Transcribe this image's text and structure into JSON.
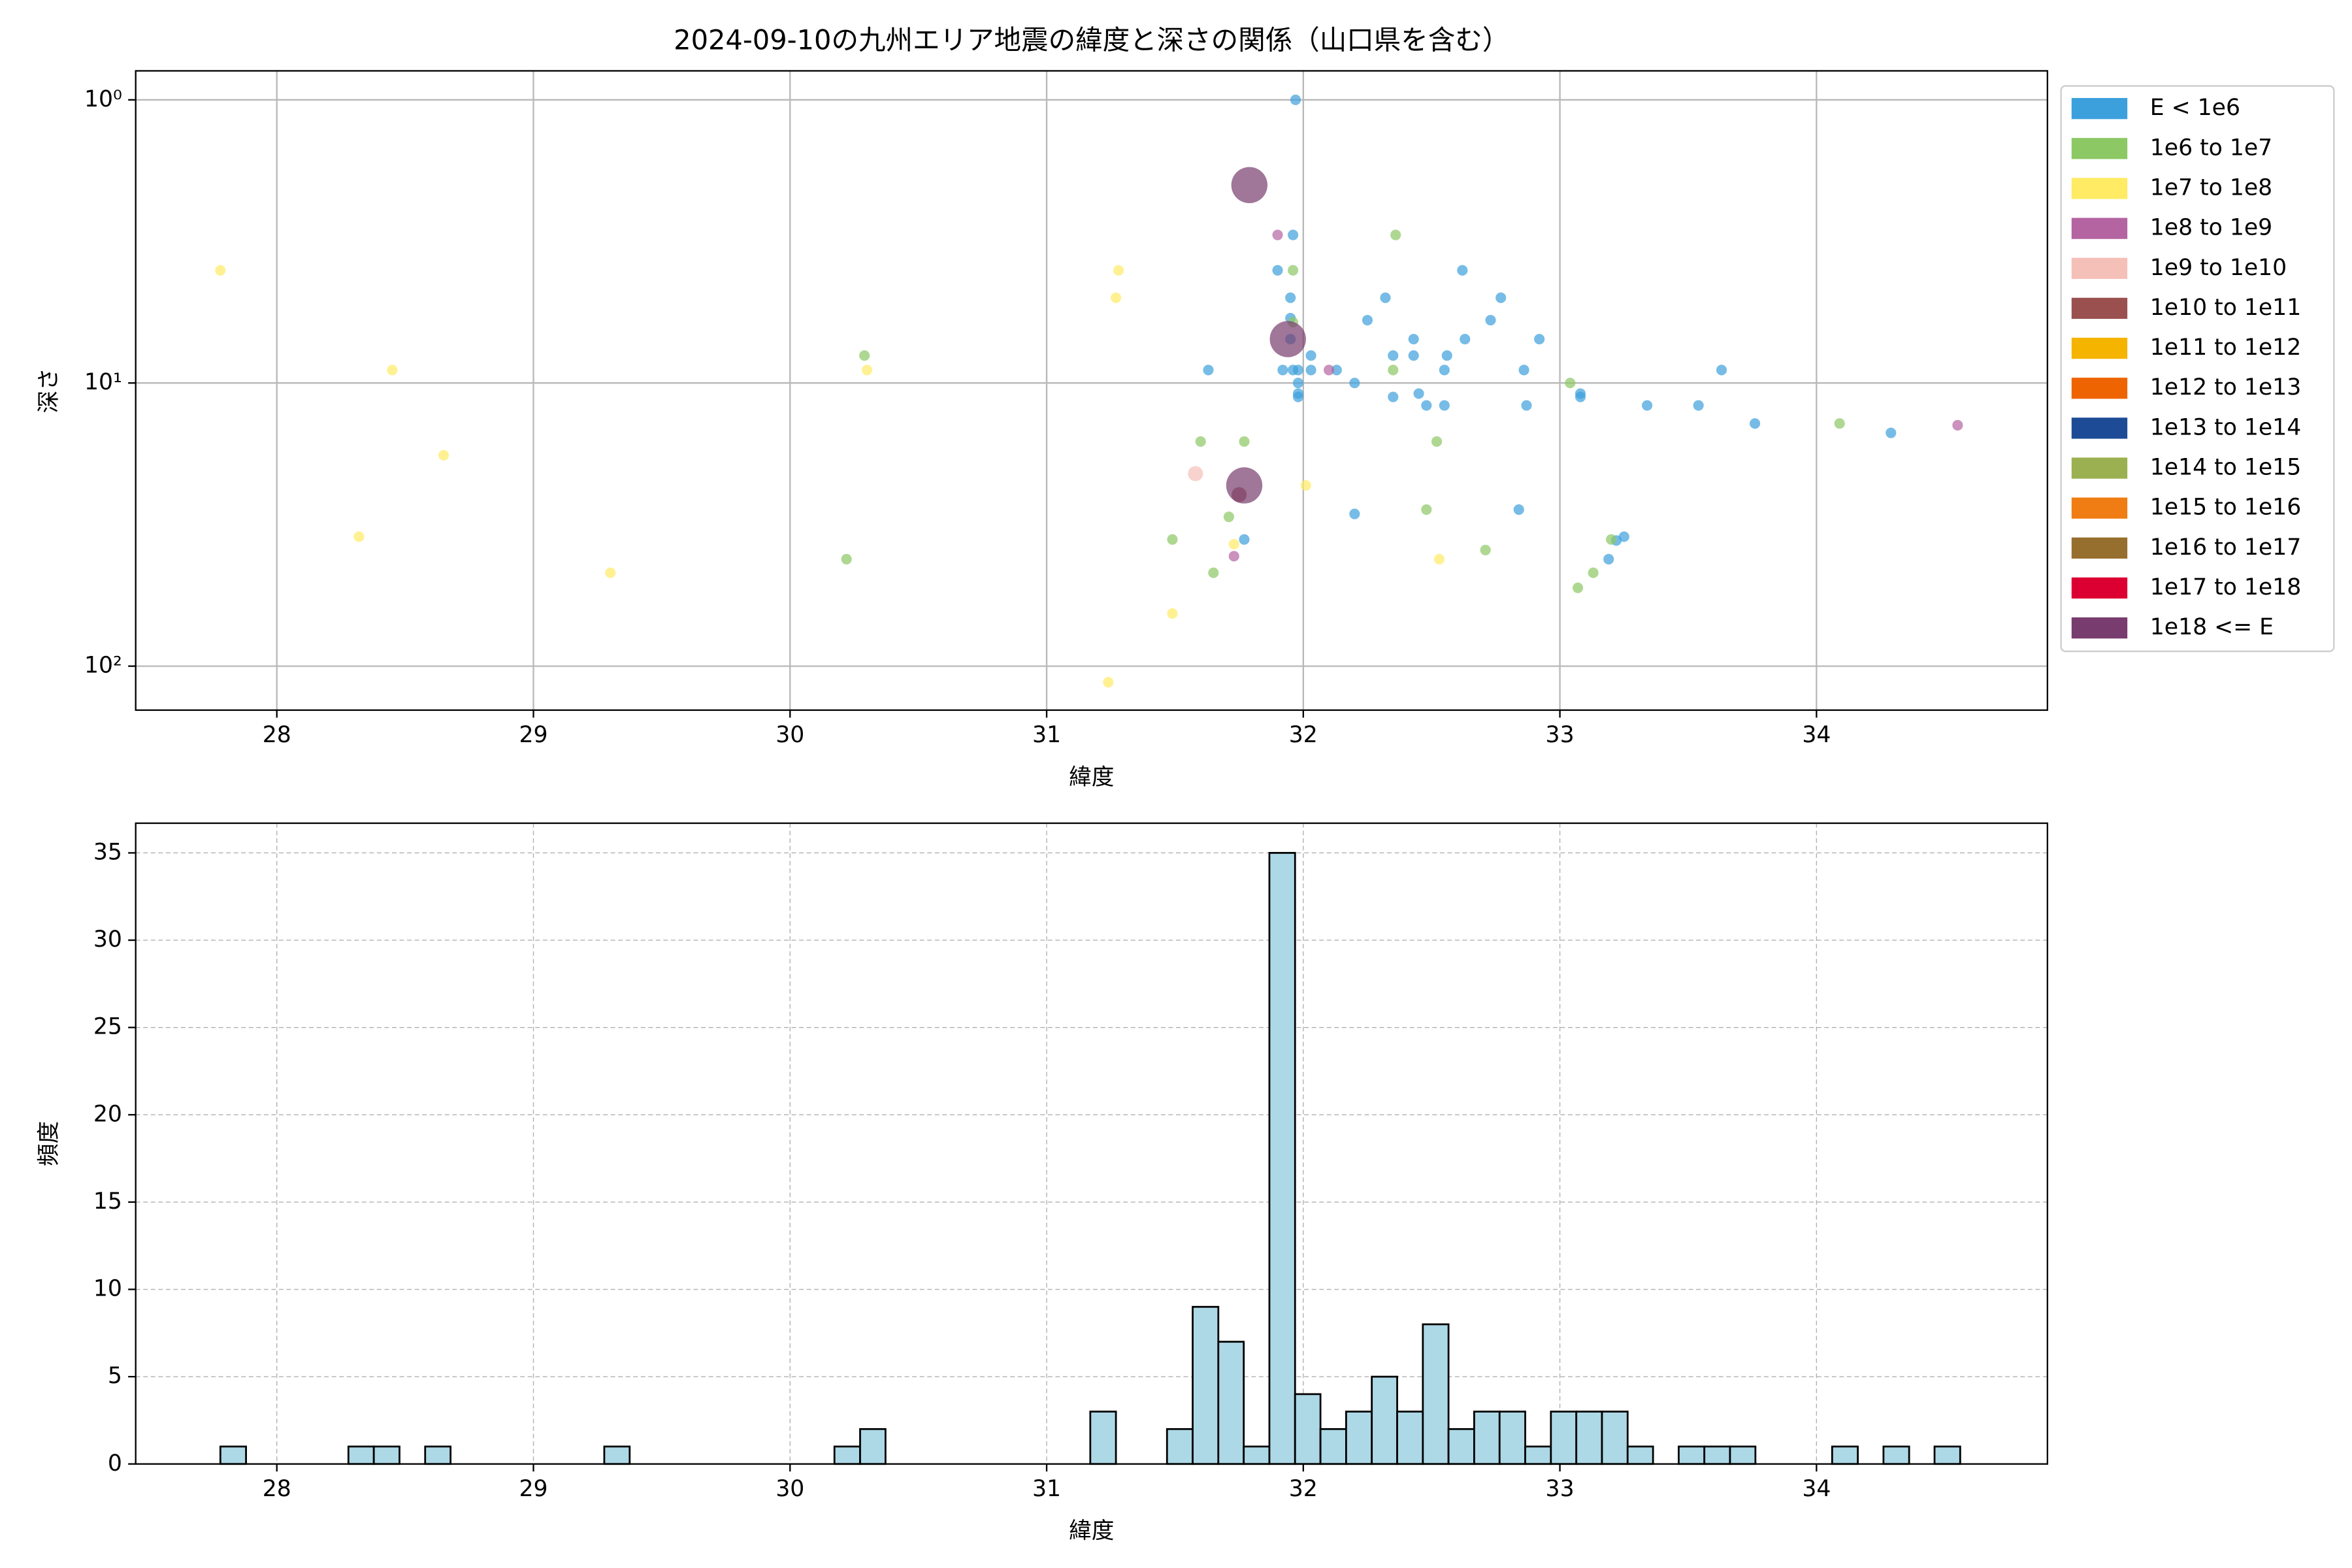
{
  "chart_data": [
    {
      "type": "scatter",
      "title": "2024-09-10の九州エリア地震の緯度と深さの関係（山口県を含む）",
      "xlabel": "緯度",
      "ylabel": "深さ",
      "xlim": [
        27.45,
        34.9
      ],
      "xticks": [
        28,
        29,
        30,
        31,
        32,
        33,
        34
      ],
      "ylim": [
        0.79,
        143
      ],
      "log_y": true,
      "y_inverted": true,
      "yticks": [
        {
          "value": 1,
          "label": "10⁰"
        },
        {
          "value": 10,
          "label": "10¹"
        },
        {
          "value": 100,
          "label": "10²"
        }
      ],
      "grid": true,
      "legend_position": "outside right",
      "series": [
        {
          "name": "E < 1e6",
          "color": "#3ca0dc",
          "size": 3.5,
          "x": [
            31.97,
            31.96,
            31.9,
            31.95,
            31.95,
            31.95,
            32.03,
            31.92,
            31.96,
            31.98,
            32.03,
            32.13,
            31.63,
            31.98,
            31.98,
            31.98,
            32.2,
            32.25,
            32.32,
            32.35,
            32.43,
            32.43,
            32.35,
            32.45,
            32.48,
            32.55,
            32.56,
            32.55,
            32.62,
            32.63,
            32.73,
            32.77,
            32.92,
            32.86,
            32.87,
            33.08,
            33.08,
            33.34,
            33.54,
            33.63,
            33.76,
            34.29,
            32.2,
            32.84,
            31.77,
            33.25,
            33.22,
            33.19
          ],
          "values": [
            1.0,
            3.0,
            4.0,
            5.0,
            5.9,
            7.0,
            8.0,
            9.0,
            9.0,
            9.0,
            9.0,
            9.0,
            9.0,
            10,
            10.9,
            11.2,
            10,
            6.0,
            5.0,
            8.0,
            7.0,
            8.0,
            11.2,
            10.9,
            12.0,
            9.0,
            8.0,
            12.0,
            4.0,
            7.0,
            6.0,
            5.0,
            7.0,
            9.0,
            12.0,
            10.9,
            11.2,
            12.0,
            12.0,
            9.0,
            13.9,
            15.0,
            29.0,
            28.0,
            35.7,
            34.9,
            36.0,
            41.9
          ]
        },
        {
          "name": "1e6 to 1e7",
          "color": "#8cc864",
          "size": 3.5,
          "x": [
            32.36,
            31.96,
            31.96,
            30.29,
            32.35,
            33.04,
            31.6,
            31.77,
            32.52,
            34.09,
            32.48,
            31.71,
            31.49,
            32.71,
            33.13,
            31.65,
            33.07,
            30.22,
            33.2
          ],
          "values": [
            3.0,
            4.0,
            6.1,
            8.0,
            9.0,
            10,
            16.1,
            16.1,
            16.1,
            13.9,
            28.0,
            29.7,
            35.7,
            38.9,
            46.8,
            46.8,
            52.9,
            41.9,
            35.7
          ]
        },
        {
          "name": "1e7 to 1e8",
          "color": "#ffeb64",
          "size": 3.5,
          "x": [
            27.78,
            31.28,
            31.27,
            28.45,
            30.3,
            28.65,
            32.01,
            28.32,
            31.73,
            32.53,
            29.3,
            31.49,
            31.24
          ],
          "values": [
            4.0,
            4.0,
            5.0,
            9.0,
            9.0,
            18.0,
            23.0,
            34.9,
            37.1,
            41.9,
            46.8,
            65.2,
            114
          ]
        },
        {
          "name": "1e8 to 1e9",
          "color": "#b464a0",
          "size": 3.5,
          "x": [
            31.9,
            32.1,
            31.73,
            34.55
          ],
          "values": [
            3.0,
            9.0,
            40.9,
            14.1
          ]
        },
        {
          "name": "1e9 to 1e10",
          "color": "#f5c0b8",
          "size": 5,
          "x": [
            31.58
          ],
          "values": [
            20.9
          ]
        },
        {
          "name": "1e10 to 1e11",
          "color": "#9b5050",
          "size": 5,
          "x": [
            31.75
          ],
          "values": [
            24.8
          ]
        },
        {
          "name": "1e11 to 1e12",
          "color": "#f5b400",
          "size": 5,
          "x": [],
          "values": []
        },
        {
          "name": "1e12 to 1e13",
          "color": "#ee6400",
          "size": 5,
          "x": [],
          "values": []
        },
        {
          "name": "1e13 to 1e14",
          "color": "#1e4b96",
          "size": 5,
          "x": [],
          "values": []
        },
        {
          "name": "1e14 to 1e15",
          "color": "#9bb050",
          "size": 5,
          "x": [],
          "values": []
        },
        {
          "name": "1e15 to 1e16",
          "color": "#f07d14",
          "size": 5,
          "x": [],
          "values": []
        },
        {
          "name": "1e16 to 1e17",
          "color": "#966e2d",
          "size": 5,
          "x": [],
          "values": []
        },
        {
          "name": "1e17 to 1e18",
          "color": "#dc0032",
          "size": 5,
          "x": [],
          "values": []
        },
        {
          "name": "1e18 <= E",
          "color": "#783c6e",
          "size": 12,
          "x": [
            31.79,
            31.94,
            31.77
          ],
          "values": [
            2.0,
            7.0,
            23.0
          ]
        }
      ]
    },
    {
      "type": "histogram",
      "xlabel": "緯度",
      "ylabel": "頻度",
      "xlim": [
        27.45,
        34.9
      ],
      "xticks": [
        28,
        29,
        30,
        31,
        32,
        33,
        34
      ],
      "ylim": [
        0,
        36.7
      ],
      "yticks": [
        0,
        5,
        10,
        15,
        20,
        25,
        30,
        35
      ],
      "grid": true,
      "grid_style": "dashed",
      "color": "#add8e6",
      "edgecolor": "#000000",
      "bins": [
        27.78,
        27.88,
        27.979,
        28.079,
        28.179,
        28.279,
        28.378,
        28.478,
        28.578,
        28.677,
        28.777,
        28.877,
        28.976,
        29.076,
        29.176,
        29.276,
        29.375,
        29.475,
        29.575,
        29.674,
        29.774,
        29.874,
        29.974,
        30.073,
        30.173,
        30.273,
        30.372,
        30.472,
        30.572,
        30.671,
        30.771,
        30.871,
        30.971,
        31.07,
        31.17,
        31.27,
        31.369,
        31.469,
        31.569,
        31.669,
        31.768,
        31.868,
        31.968,
        32.067,
        32.167,
        32.267,
        32.366,
        32.466,
        32.566,
        32.666,
        32.765,
        32.865,
        32.965,
        33.064,
        33.164,
        33.264,
        33.363,
        33.463,
        33.563,
        33.663,
        33.762,
        33.862,
        33.962,
        34.061,
        34.161,
        34.261,
        34.361,
        34.46,
        34.56
      ],
      "values": [
        1,
        0,
        0,
        0,
        0,
        1,
        1,
        0,
        1,
        0,
        0,
        0,
        0,
        0,
        0,
        1,
        0,
        0,
        0,
        0,
        0,
        0,
        0,
        0,
        1,
        2,
        0,
        0,
        0,
        0,
        0,
        0,
        0,
        0,
        3,
        0,
        0,
        2,
        9,
        7,
        1,
        35,
        4,
        2,
        3,
        5,
        3,
        8,
        2,
        3,
        3,
        1,
        3,
        3,
        3,
        1,
        0,
        1,
        1,
        1,
        0,
        0,
        0,
        1,
        0,
        1,
        0,
        1
      ]
    }
  ]
}
